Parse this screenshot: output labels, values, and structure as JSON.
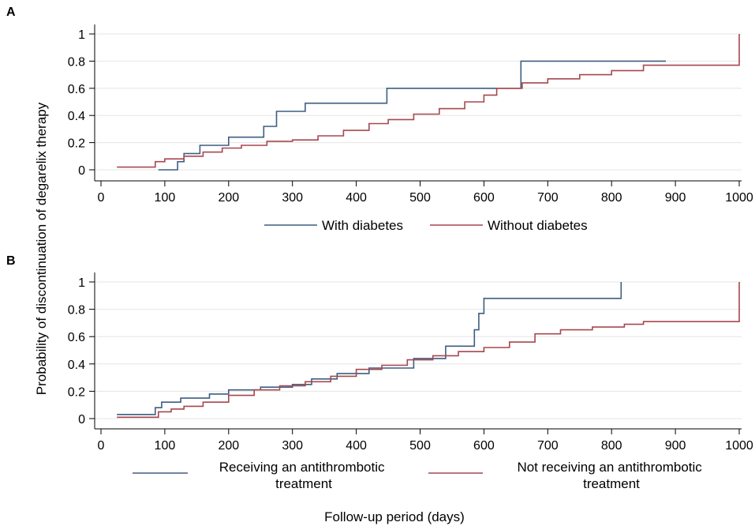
{
  "figure": {
    "ylabel": "Probability of discontinuation of degarelix therapy",
    "xlabel": "Follow-up period (days)"
  },
  "colors": {
    "series1": "#3d5e80",
    "series2": "#a7474f",
    "grid": "#e6e6e6"
  },
  "chart_data": [
    {
      "panel": "A",
      "type": "line",
      "step": true,
      "xlim": [
        0,
        1000
      ],
      "ylim": [
        0,
        1
      ],
      "x_ticks": [
        "0",
        "100",
        "200",
        "300",
        "400",
        "500",
        "600",
        "700",
        "800",
        "900",
        "1000"
      ],
      "y_ticks": [
        "0",
        "0.2",
        "0.4",
        "0.6",
        "0.8",
        "1"
      ],
      "grid": true,
      "legend_position": "bottom",
      "series": [
        {
          "name": "With diabetes",
          "points": [
            [
              90,
              0
            ],
            [
              120,
              0
            ],
            [
              120,
              0.06
            ],
            [
              130,
              0.06
            ],
            [
              130,
              0.12
            ],
            [
              155,
              0.12
            ],
            [
              155,
              0.18
            ],
            [
              200,
              0.18
            ],
            [
              200,
              0.24
            ],
            [
              255,
              0.24
            ],
            [
              255,
              0.32
            ],
            [
              275,
              0.32
            ],
            [
              275,
              0.43
            ],
            [
              320,
              0.43
            ],
            [
              320,
              0.49
            ],
            [
              448,
              0.49
            ],
            [
              448,
              0.6
            ],
            [
              658,
              0.6
            ],
            [
              658,
              0.8
            ],
            [
              885,
              0.8
            ]
          ]
        },
        {
          "name": "Without diabetes",
          "points": [
            [
              25,
              0.02
            ],
            [
              80,
              0.02
            ],
            [
              85,
              0.06
            ],
            [
              100,
              0.08
            ],
            [
              130,
              0.1
            ],
            [
              160,
              0.13
            ],
            [
              190,
              0.16
            ],
            [
              220,
              0.18
            ],
            [
              260,
              0.21
            ],
            [
              300,
              0.22
            ],
            [
              340,
              0.25
            ],
            [
              380,
              0.29
            ],
            [
              420,
              0.34
            ],
            [
              450,
              0.37
            ],
            [
              490,
              0.41
            ],
            [
              530,
              0.45
            ],
            [
              570,
              0.5
            ],
            [
              600,
              0.55
            ],
            [
              620,
              0.6
            ],
            [
              660,
              0.64
            ],
            [
              700,
              0.67
            ],
            [
              750,
              0.7
            ],
            [
              800,
              0.73
            ],
            [
              850,
              0.77
            ],
            [
              1000,
              0.77
            ],
            [
              1000,
              1.0
            ]
          ]
        }
      ]
    },
    {
      "panel": "B",
      "type": "line",
      "step": true,
      "xlim": [
        0,
        1000
      ],
      "ylim": [
        0,
        1
      ],
      "x_ticks": [
        "0",
        "100",
        "200",
        "300",
        "400",
        "500",
        "600",
        "700",
        "800",
        "900",
        "1000"
      ],
      "y_ticks": [
        "0",
        "0.2",
        "0.4",
        "0.6",
        "0.8",
        "1"
      ],
      "grid": true,
      "legend_position": "bottom",
      "series": [
        {
          "name": "Receiving an antithrombotic treatment",
          "points": [
            [
              25,
              0.03
            ],
            [
              80,
              0.03
            ],
            [
              85,
              0.08
            ],
            [
              95,
              0.12
            ],
            [
              125,
              0.15
            ],
            [
              170,
              0.18
            ],
            [
              200,
              0.21
            ],
            [
              250,
              0.23
            ],
            [
              300,
              0.25
            ],
            [
              330,
              0.29
            ],
            [
              370,
              0.33
            ],
            [
              420,
              0.37
            ],
            [
              490,
              0.44
            ],
            [
              540,
              0.53
            ],
            [
              585,
              0.65
            ],
            [
              592,
              0.77
            ],
            [
              600,
              0.88
            ],
            [
              815,
              0.88
            ],
            [
              815,
              1.0
            ]
          ]
        },
        {
          "name": "Not receiving an antithrombotic treatment",
          "points": [
            [
              25,
              0.01
            ],
            [
              80,
              0.01
            ],
            [
              90,
              0.05
            ],
            [
              110,
              0.07
            ],
            [
              130,
              0.09
            ],
            [
              160,
              0.12
            ],
            [
              200,
              0.17
            ],
            [
              240,
              0.21
            ],
            [
              280,
              0.24
            ],
            [
              320,
              0.27
            ],
            [
              360,
              0.31
            ],
            [
              400,
              0.36
            ],
            [
              440,
              0.39
            ],
            [
              480,
              0.43
            ],
            [
              520,
              0.46
            ],
            [
              560,
              0.49
            ],
            [
              600,
              0.52
            ],
            [
              640,
              0.56
            ],
            [
              680,
              0.62
            ],
            [
              720,
              0.65
            ],
            [
              770,
              0.67
            ],
            [
              820,
              0.69
            ],
            [
              850,
              0.71
            ],
            [
              1000,
              0.71
            ],
            [
              1000,
              1.0
            ]
          ]
        }
      ]
    }
  ]
}
